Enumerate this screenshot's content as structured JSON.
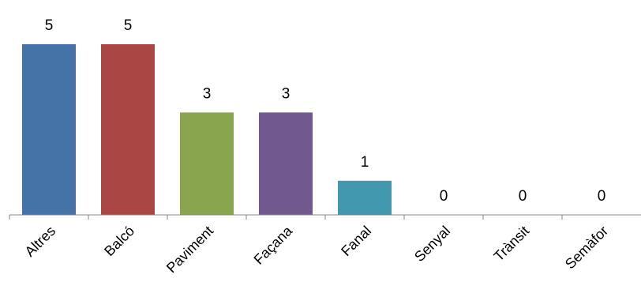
{
  "chart_data": {
    "type": "bar",
    "categories": [
      "Altres",
      "Balcó",
      "Paviment",
      "Façana",
      "Fanal",
      "Senyal",
      "Trànsit",
      "Semàfor"
    ],
    "values": [
      5,
      5,
      3,
      3,
      1,
      0,
      0,
      0
    ],
    "data_labels": [
      "5",
      "5",
      "3",
      "3",
      "1",
      "0",
      "0",
      "0"
    ],
    "colors": [
      "#4572A7",
      "#AA4643",
      "#89A54E",
      "#71588F",
      "#4198AF",
      "#DB843D",
      "#93A9CF",
      "#D19392"
    ],
    "ylim": [
      0,
      5
    ],
    "grid": false,
    "legend": "none",
    "title": "",
    "xlabel": "",
    "ylabel": ""
  }
}
